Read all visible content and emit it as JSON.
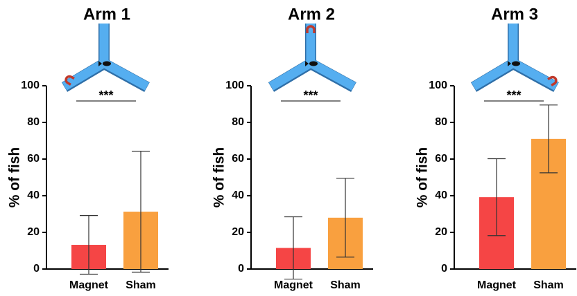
{
  "chart_data": [
    {
      "type": "bar",
      "title": "Arm 1",
      "y_label": "% of fish",
      "categories": [
        "Magnet",
        "Sham"
      ],
      "values": [
        13.2,
        31.3
      ],
      "errors": [
        16,
        33
      ],
      "colors": [
        "#f54545",
        "#f9a03f"
      ],
      "ylim": [
        0,
        100
      ],
      "yticks": [
        0,
        20,
        40,
        60,
        80,
        100
      ],
      "significance": "***"
    },
    {
      "type": "bar",
      "title": "Arm 2",
      "y_label": "% of fish",
      "categories": [
        "Magnet",
        "Sham"
      ],
      "values": [
        11.5,
        28
      ],
      "errors": [
        17,
        21.5
      ],
      "colors": [
        "#f54545",
        "#f9a03f"
      ],
      "ylim": [
        0,
        100
      ],
      "yticks": [
        0,
        20,
        40,
        60,
        80,
        100
      ],
      "significance": "***"
    },
    {
      "type": "bar",
      "title": "Arm 3",
      "y_label": "% of fish",
      "categories": [
        "Magnet",
        "Sham"
      ],
      "values": [
        39.2,
        71
      ],
      "errors": [
        21,
        18.5
      ],
      "colors": [
        "#f54545",
        "#f9a03f"
      ],
      "ylim": [
        0,
        100
      ],
      "yticks": [
        0,
        20,
        40,
        60,
        80,
        100
      ],
      "significance": "***"
    }
  ]
}
